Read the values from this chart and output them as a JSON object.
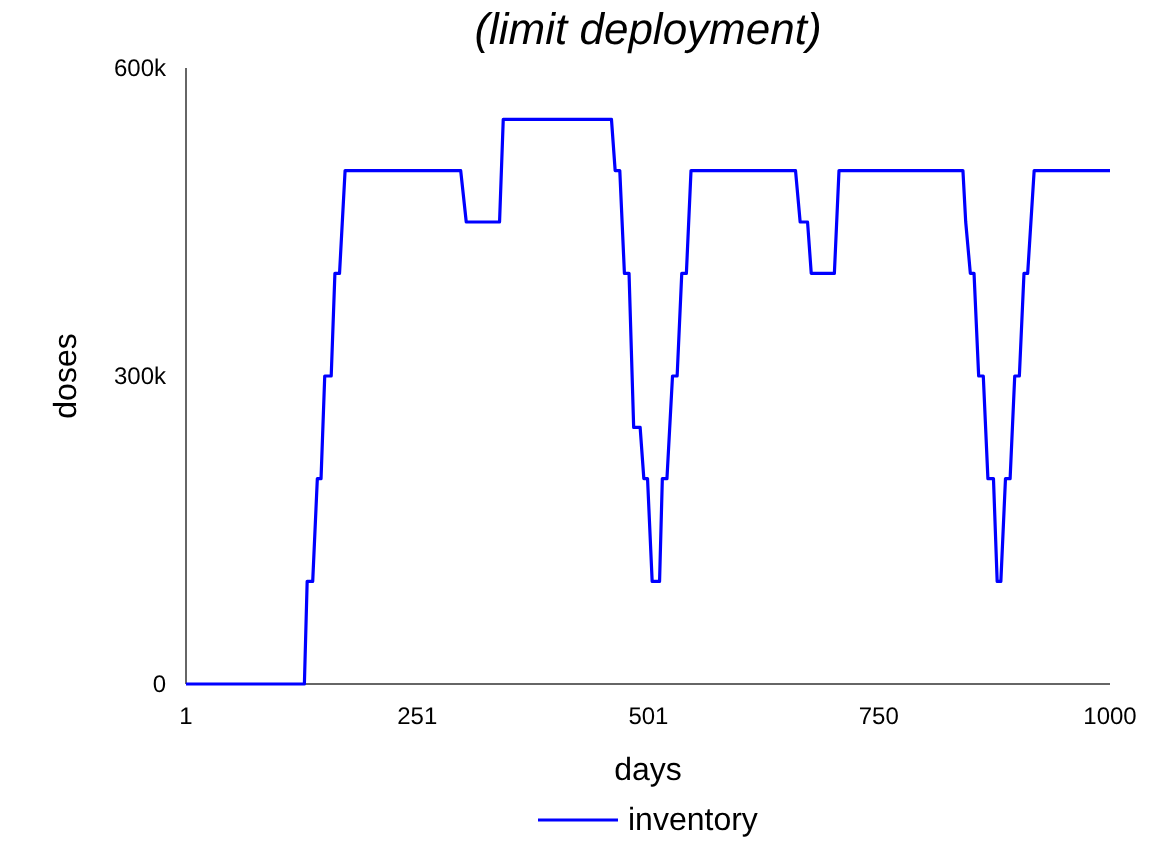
{
  "chart_data": {
    "type": "line",
    "title": "(limit deployment)",
    "xlabel": "days",
    "ylabel": "doses",
    "xlim": [
      1,
      1000
    ],
    "xticks": [
      1,
      251,
      501,
      750,
      1000
    ],
    "ylim": [
      0,
      600000
    ],
    "yticks": [
      {
        "value": 0,
        "label": "0"
      },
      {
        "value": 300000,
        "label": "300k"
      },
      {
        "value": 600000,
        "label": "600k"
      }
    ],
    "legend": "bottom",
    "grid": false,
    "marker": "none",
    "line_style": "solid",
    "series": [
      {
        "name": "inventory",
        "color": "#0000ff",
        "x": [
          1,
          129,
          132,
          138,
          143,
          147,
          151,
          158,
          162,
          167,
          173,
          298,
          304,
          340,
          344,
          461,
          465,
          470,
          475,
          480,
          485,
          492,
          496,
          500,
          505,
          513,
          516,
          521,
          527,
          532,
          537,
          542,
          547,
          660,
          665,
          673,
          677,
          702,
          707,
          841,
          844,
          849,
          853,
          858,
          863,
          868,
          874,
          878,
          882,
          887,
          892,
          897,
          902,
          907,
          911,
          918,
          1000
        ],
        "values": [
          0,
          0,
          100000,
          100000,
          200000,
          200000,
          300000,
          300000,
          400000,
          400000,
          500000,
          500000,
          450000,
          450000,
          550000,
          550000,
          500000,
          500000,
          400000,
          400000,
          250000,
          250000,
          200000,
          200000,
          100000,
          100000,
          200000,
          200000,
          300000,
          300000,
          400000,
          400000,
          500000,
          500000,
          450000,
          450000,
          400000,
          400000,
          500000,
          500000,
          450000,
          400000,
          400000,
          300000,
          300000,
          200000,
          200000,
          100000,
          100000,
          200000,
          200000,
          300000,
          300000,
          400000,
          400000,
          500000,
          500000
        ]
      }
    ]
  }
}
